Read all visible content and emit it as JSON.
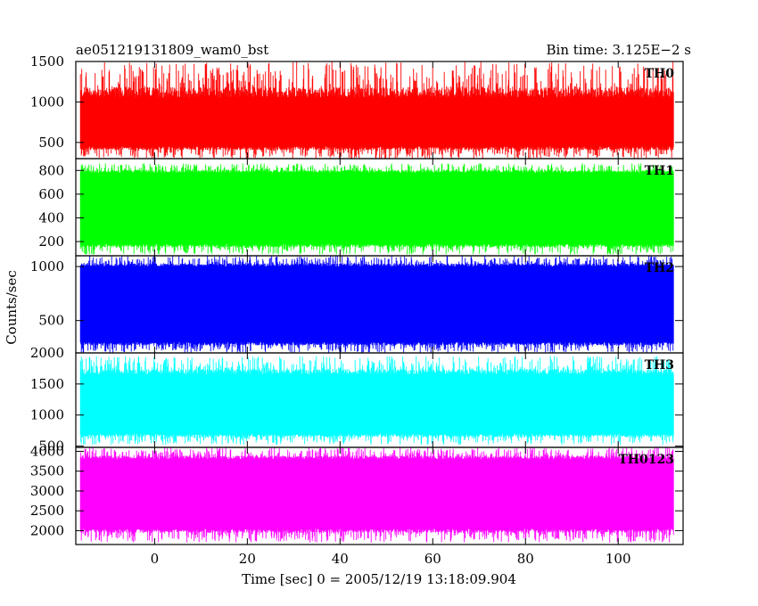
{
  "header": {
    "title": "ae051219131809_wam0_bst",
    "bin_time": "Bin time: 3.125E−2 s"
  },
  "axes": {
    "ylabel": "Counts/sec",
    "xlabel": "Time [sec] 0 = 2005/12/19 13:18:09.904"
  },
  "chart_data": {
    "type": "line",
    "title": "ae051219131809_wam0_bst",
    "xlabel": "Time [sec] 0 = 2005/12/19 13:18:09.904",
    "ylabel": "Counts/sec",
    "xlim": [
      -17,
      114
    ],
    "x_ticks": [
      0,
      20,
      40,
      60,
      80,
      100
    ],
    "x_data_range": [
      -16,
      112
    ],
    "bin_time_s": 0.03125,
    "grid": false,
    "panels": [
      {
        "name": "TH0",
        "color": "#ff0000",
        "ylim": [
          300,
          1500
        ],
        "y_ticks": [
          500,
          1000,
          1500
        ],
        "band_low": 450,
        "band_high": 1050,
        "spike_max": 1500,
        "spike_min": 300
      },
      {
        "name": "TH1",
        "color": "#00ff00",
        "ylim": [
          80,
          900
        ],
        "y_ticks": [
          200,
          400,
          600,
          800
        ],
        "band_low": 180,
        "band_high": 780,
        "spike_max": 860,
        "spike_min": 90
      },
      {
        "name": "TH2",
        "color": "#0000ff",
        "ylim": [
          200,
          1100
        ],
        "y_ticks": [
          500,
          1000
        ],
        "band_low": 300,
        "band_high": 1000,
        "spike_max": 1100,
        "spike_min": 200
      },
      {
        "name": "TH3",
        "color": "#00ffff",
        "ylim": [
          480,
          2000
        ],
        "y_ticks": [
          500,
          1000,
          1500,
          2000
        ],
        "band_low": 700,
        "band_high": 1650,
        "spike_max": 1950,
        "spike_min": 520
      },
      {
        "name": "TH0123",
        "color": "#ff00ff",
        "ylim": [
          1650,
          4100
        ],
        "y_ticks": [
          2000,
          2500,
          3000,
          3500,
          4000
        ],
        "band_low": 2050,
        "band_high": 3800,
        "spike_max": 4100,
        "spike_min": 1700
      }
    ]
  }
}
